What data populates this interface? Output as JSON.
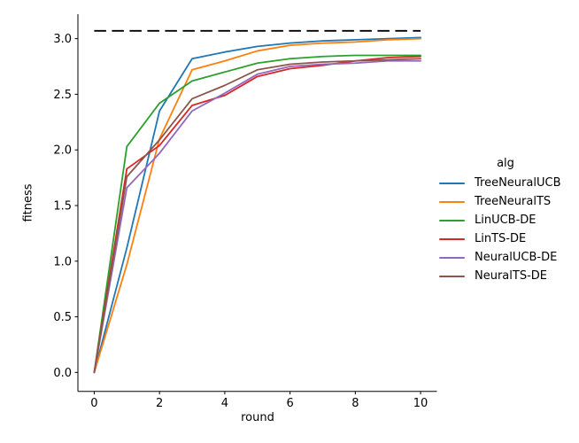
{
  "chart_data": {
    "type": "line",
    "title": "",
    "xlabel": "round",
    "ylabel": "fitness",
    "x": [
      0,
      1,
      2,
      3,
      4,
      5,
      6,
      7,
      8,
      9,
      10
    ],
    "series": [
      {
        "name": "TreeNeuralUCB",
        "color": "#1f77b4",
        "values": [
          0.0,
          1.12,
          2.35,
          2.82,
          2.88,
          2.93,
          2.96,
          2.98,
          2.99,
          3.0,
          3.01
        ]
      },
      {
        "name": "TreeNeuralTS",
        "color": "#ff7f0e",
        "values": [
          0.0,
          0.97,
          2.1,
          2.72,
          2.8,
          2.89,
          2.94,
          2.96,
          2.97,
          2.99,
          3.0
        ]
      },
      {
        "name": "LinUCB-DE",
        "color": "#2ca02c",
        "values": [
          0.0,
          2.03,
          2.42,
          2.62,
          2.7,
          2.78,
          2.82,
          2.84,
          2.85,
          2.85,
          2.85
        ]
      },
      {
        "name": "LinTS-DE",
        "color": "#d62728",
        "values": [
          0.0,
          1.83,
          2.04,
          2.4,
          2.49,
          2.66,
          2.73,
          2.76,
          2.8,
          2.83,
          2.84
        ]
      },
      {
        "name": "NeuralUCB-DE",
        "color": "#9467bd",
        "values": [
          0.0,
          1.66,
          1.97,
          2.35,
          2.51,
          2.68,
          2.75,
          2.77,
          2.78,
          2.8,
          2.8
        ]
      },
      {
        "name": "NeuralTS-DE",
        "color": "#8c564b",
        "values": [
          0.0,
          1.76,
          2.09,
          2.46,
          2.58,
          2.72,
          2.77,
          2.79,
          2.8,
          2.81,
          2.82
        ]
      }
    ],
    "reference_line": {
      "y": 3.07,
      "style": "dashed",
      "color": "#000000",
      "x_start": 0,
      "x_end": 10
    },
    "legend": {
      "title": "alg",
      "position": "right"
    },
    "xlim": [
      -0.5,
      10.5
    ],
    "ylim": [
      -0.17,
      3.22
    ],
    "x_ticks": {
      "values": [
        0,
        2,
        4,
        6,
        8,
        10
      ],
      "labels": [
        "0",
        "2",
        "4",
        "6",
        "8",
        "10"
      ]
    },
    "y_ticks": {
      "values": [
        0.0,
        0.5,
        1.0,
        1.5,
        2.0,
        2.5,
        3.0
      ],
      "labels": [
        "0.0",
        "0.5",
        "1.0",
        "1.5",
        "2.0",
        "2.5",
        "3.0"
      ]
    },
    "grid": false,
    "colors": {
      "text": "#000000",
      "spine": "#000000",
      "background": "#ffffff"
    }
  }
}
